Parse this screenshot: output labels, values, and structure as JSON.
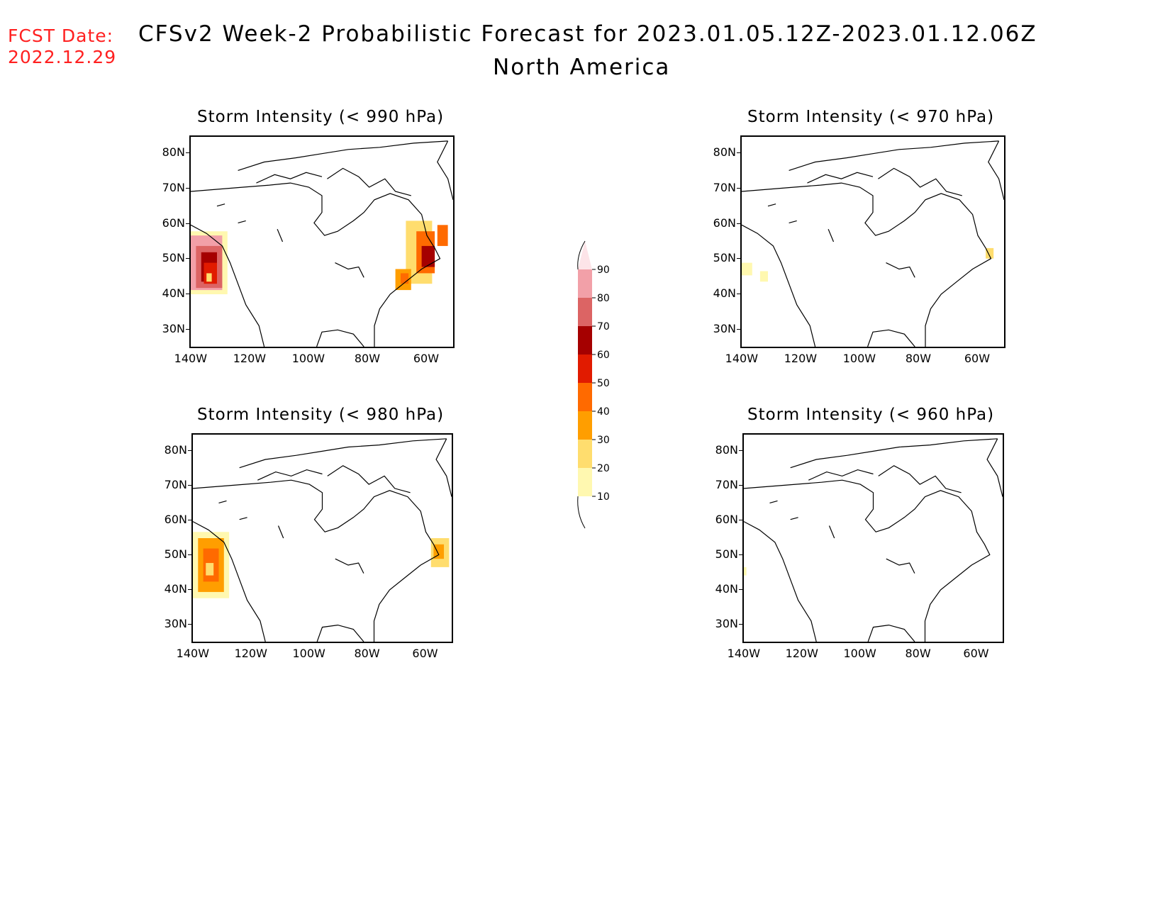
{
  "header": {
    "fcst_label": "FCST Date:",
    "fcst_date": "2022.12.29",
    "title": "CFSv2 Week-2 Probabilistic Forecast for 2023.01.05.12Z-2023.01.12.06Z",
    "subtitle": "North America"
  },
  "panels": [
    {
      "title": "Storm Intensity (< 990 hPa)"
    },
    {
      "title": "Storm Intensity (< 970 hPa)"
    },
    {
      "title": "Storm Intensity (< 980 hPa)"
    },
    {
      "title": "Storm Intensity (< 960 hPa)"
    }
  ],
  "axes": {
    "lat_labels": [
      "80N",
      "70N",
      "60N",
      "50N",
      "40N",
      "30N"
    ],
    "lon_labels": [
      "140W",
      "120W",
      "100W",
      "80W",
      "60W"
    ]
  },
  "colorbar": {
    "levels": [
      "90",
      "80",
      "70",
      "60",
      "50",
      "40",
      "30",
      "20",
      "10"
    ],
    "colors": [
      "#fde4e8",
      "#f2a0a8",
      "#dc6464",
      "#a50000",
      "#e11b00",
      "#ff6a00",
      "#ff9e00",
      "#ffdd6e",
      "#fff8b0"
    ]
  }
}
